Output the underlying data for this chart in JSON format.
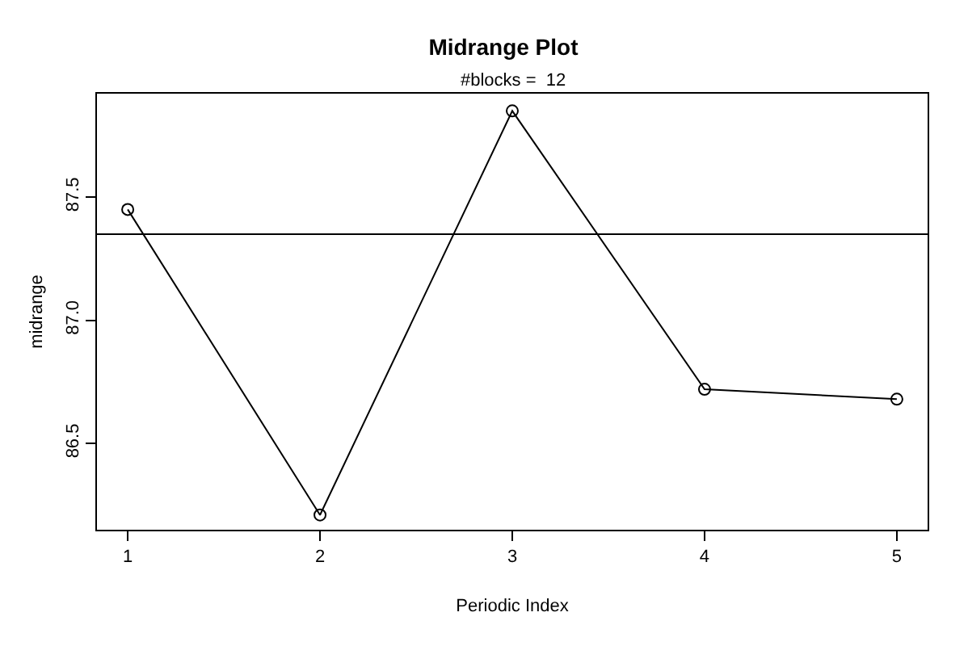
{
  "chart_data": {
    "type": "line",
    "title": "Midrange Plot",
    "subtitle": "#blocks =  12",
    "xlabel": "Periodic Index",
    "ylabel": "midrange",
    "x": [
      1,
      2,
      3,
      4,
      5
    ],
    "series": [
      {
        "color": "#000000",
        "values": [
          87.45,
          86.21,
          87.85,
          86.72,
          86.68
        ]
      }
    ],
    "xlim": [
      0.84,
      5.16
    ],
    "xticks": [
      1,
      2,
      3,
      4,
      5
    ],
    "ylim": [
      86.15,
      87.92
    ],
    "yticks": [
      {
        "value": 86.5,
        "label": "86.5"
      },
      {
        "value": 87.0,
        "label": "87.0"
      },
      {
        "value": 87.5,
        "label": "87.5"
      }
    ],
    "ref_lines": [
      {
        "axis": "y",
        "value": 87.35,
        "color": "#000000"
      }
    ],
    "marker": "circle",
    "line_style": "solid"
  }
}
